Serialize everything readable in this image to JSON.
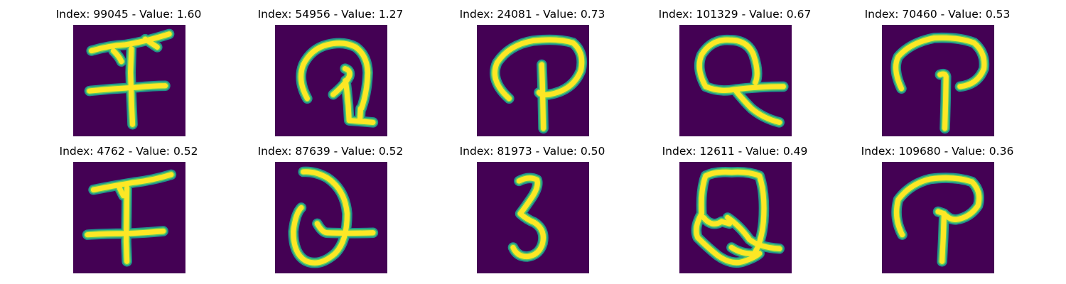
{
  "figure": {
    "image_background": "#440154",
    "stroke_colors": {
      "core": "#fde725",
      "mid": "#5ec962",
      "edge": "#21918c"
    },
    "panels": [
      {
        "title": "Index: 99045 - Value: 1.60",
        "glyph": "F"
      },
      {
        "title": "Index: 54956 - Value: 1.27",
        "glyph": "Q"
      },
      {
        "title": "Index: 24081 - Value: 0.73",
        "glyph": "P"
      },
      {
        "title": "Index: 101329 - Value: 0.67",
        "glyph": "Q"
      },
      {
        "title": "Index: 70460 - Value: 0.53",
        "glyph": "P"
      },
      {
        "title": "Index: 4762 - Value: 0.52",
        "glyph": "F"
      },
      {
        "title": "Index: 87639 - Value: 0.52",
        "glyph": "Q"
      },
      {
        "title": "Index: 81973 - Value: 0.50",
        "glyph": "3"
      },
      {
        "title": "Index: 12611 - Value: 0.49",
        "glyph": "Q"
      },
      {
        "title": "Index: 109680 - Value: 0.36",
        "glyph": "P"
      }
    ]
  }
}
